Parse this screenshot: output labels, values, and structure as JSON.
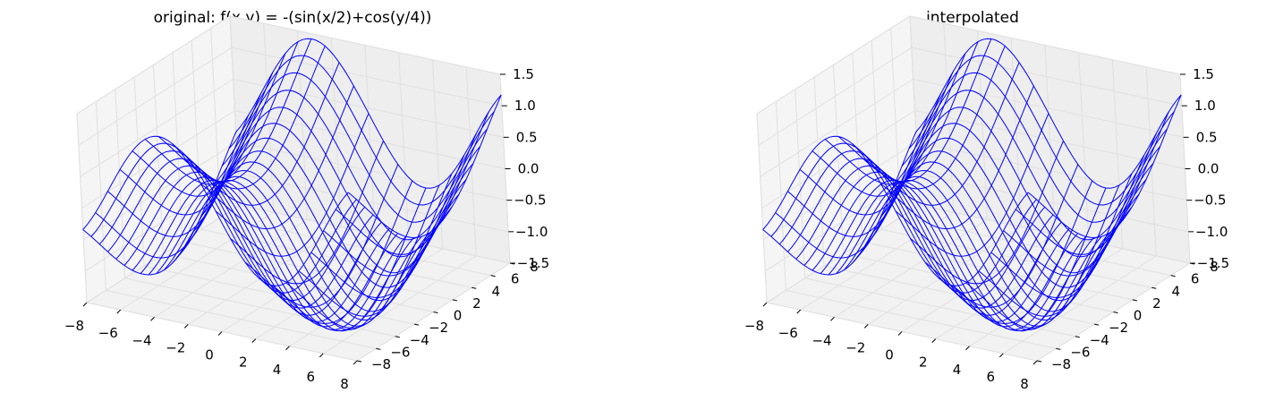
{
  "chart_data": [
    {
      "type": "surface",
      "title": "original: f(x,y) = -(sin(x/2)+cos(y/4))",
      "function": "-(sin(x/2)+cos(y/4))",
      "xlim": [
        -8,
        8
      ],
      "ylim": [
        -8,
        8
      ],
      "zlim": [
        -1.5,
        1.5
      ],
      "xticks": [
        "−8",
        "−6",
        "−4",
        "−2",
        "0",
        "2",
        "4",
        "6",
        "8"
      ],
      "yticks": [
        "−8",
        "−6",
        "−4",
        "−2",
        "0",
        "2",
        "4",
        "6",
        "8"
      ],
      "zticks": [
        "−1.5",
        "−1.0",
        "−0.5",
        "0.0",
        "0.5",
        "1.0",
        "1.5"
      ],
      "grid": true,
      "wire_color": "#0000ff",
      "wire_points_per_axis": 21
    },
    {
      "type": "surface",
      "title": "interpolated",
      "function": "-(sin(x/2)+cos(y/4))",
      "xlim": [
        -8,
        8
      ],
      "ylim": [
        -8,
        8
      ],
      "zlim": [
        -1.5,
        1.5
      ],
      "xticks": [
        "−8",
        "−6",
        "−4",
        "−2",
        "0",
        "2",
        "4",
        "6",
        "8"
      ],
      "yticks": [
        "−8",
        "−6",
        "−4",
        "−2",
        "0",
        "2",
        "4",
        "6",
        "8"
      ],
      "zticks": [
        "−1.5",
        "−1.0",
        "−0.5",
        "0.0",
        "0.5",
        "1.0",
        "1.5"
      ],
      "grid": true,
      "wire_color": "#0000ff",
      "wire_points_per_axis": 21
    }
  ]
}
